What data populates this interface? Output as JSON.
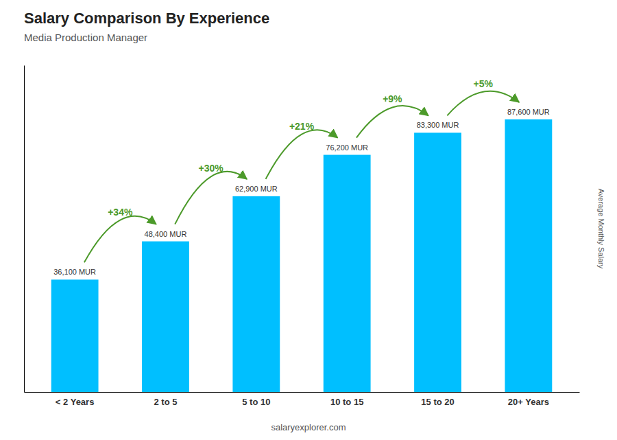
{
  "chart_data": {
    "type": "bar",
    "title": "Salary Comparison By Experience",
    "subtitle": "Media Production Manager",
    "y_label": "Average Monthly Salary",
    "categories": [
      "< 2 Years",
      "2 to 5",
      "5 to 10",
      "10 to 15",
      "15 to 20",
      "20+ Years"
    ],
    "values": [
      36100,
      48400,
      62900,
      76200,
      83300,
      87600
    ],
    "value_labels": [
      "36,100 MUR",
      "48,400 MUR",
      "62,900 MUR",
      "76,200 MUR",
      "83,300 MUR",
      "87,600 MUR"
    ],
    "data_labels": true,
    "color": "#00BFFF",
    "ylim": [
      0,
      105000
    ],
    "tick_labels": "x",
    "annotations": [
      "+34%",
      "+30%",
      "+21%",
      "+9%",
      "+5%"
    ],
    "source": "salaryexplorer.com"
  }
}
